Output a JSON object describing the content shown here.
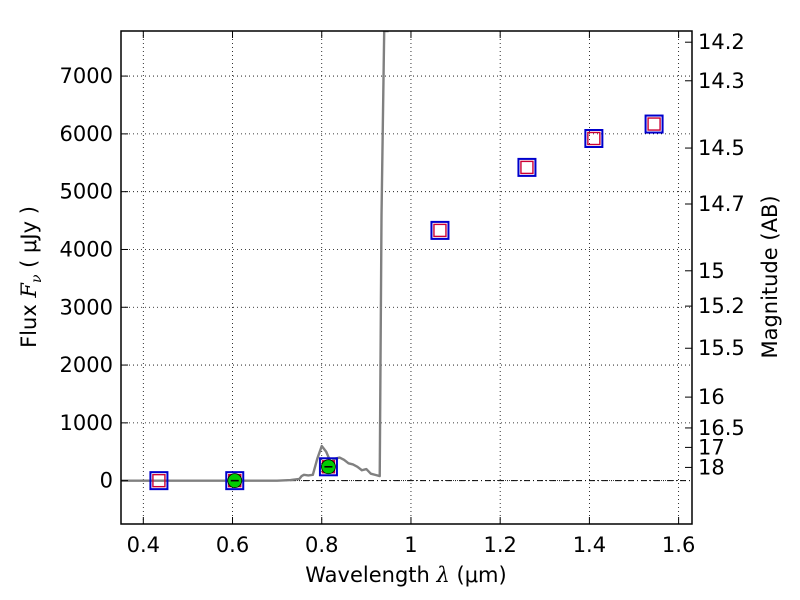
{
  "chart_data": {
    "type": "scatter",
    "xlabel": {
      "prefix": "Wavelength  ",
      "symbol": "λ",
      "unit": " (μm)"
    },
    "ylabel": {
      "prefix": "Flux  ",
      "symbol": "F",
      "subscript": "ν",
      "unit": "  ( μJy )"
    },
    "y2label": "Magnitude (AB)",
    "xlim": [
      0.35,
      1.63
    ],
    "ylim": [
      -750,
      7780
    ],
    "grid": true,
    "x_ticks": [
      0.4,
      0.6,
      0.8,
      1.0,
      1.2,
      1.4,
      1.6
    ],
    "x_tick_labels": [
      "0.4",
      "0.6",
      "0.8",
      "1",
      "1.2",
      "1.4",
      "1.6"
    ],
    "y_ticks": [
      0,
      1000,
      2000,
      3000,
      4000,
      5000,
      6000,
      7000
    ],
    "y_tick_labels": [
      "0",
      "1000",
      "2000",
      "3000",
      "4000",
      "5000",
      "6000",
      "7000"
    ],
    "magnitude_ticks": [
      "14.2",
      "14.3",
      "14.5",
      "14.7",
      "15",
      "15.2",
      "15.5",
      "16",
      "16.5",
      "17",
      "18"
    ],
    "colors": {
      "model_line": "#808080",
      "blue_box": "#0000cc",
      "red_box": "#cc0033",
      "green_point": "#00cc00",
      "zero_line": "#000000"
    },
    "series": [
      {
        "marker": "model-spectrum-line",
        "x": [
          0.35,
          0.5,
          0.7,
          0.73,
          0.75,
          0.755,
          0.76,
          0.77,
          0.78,
          0.79,
          0.8,
          0.81,
          0.82,
          0.83,
          0.84,
          0.85,
          0.86,
          0.87,
          0.88,
          0.89,
          0.9,
          0.91,
          0.92,
          0.93,
          0.934,
          0.94,
          0.95
        ],
        "y": [
          0,
          0,
          0,
          10,
          30,
          80,
          100,
          90,
          100,
          380,
          600,
          500,
          320,
          380,
          400,
          360,
          300,
          280,
          240,
          180,
          200,
          120,
          100,
          80,
          4600,
          7780,
          7780
        ]
      },
      {
        "marker": "blue-open-square",
        "x": [
          0.435,
          0.605,
          0.815,
          1.065,
          1.26,
          1.41,
          1.545
        ],
        "y": [
          0,
          0,
          240,
          4330,
          5420,
          5920,
          6170
        ]
      },
      {
        "marker": "red-open-square",
        "x": [
          0.435,
          0.605,
          0.815,
          1.065,
          1.26,
          1.41,
          1.545
        ],
        "y": [
          0,
          0,
          240,
          4330,
          5420,
          5920,
          6170
        ]
      },
      {
        "marker": "green-filled-circle",
        "x": [
          0.605,
          0.815
        ],
        "y": [
          0,
          240
        ]
      }
    ]
  }
}
